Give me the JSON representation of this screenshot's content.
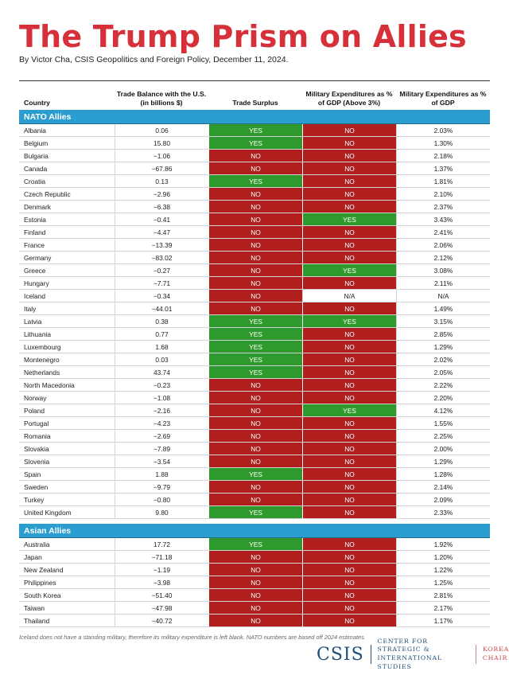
{
  "title": "The Trump Prism on Allies",
  "byline": "By Victor Cha, CSIS Geopolitics and Foreign Policy, December 11, 2024.",
  "headers": {
    "country": "Country",
    "trade_balance": "Trade Balance with the U.S. (in billions $)",
    "trade_surplus": "Trade Surplus",
    "mil_above": "Military Expenditures as % of GDP (Above 3%)",
    "mil_gdp": "Military Expenditures as % of GDP"
  },
  "sections": [
    {
      "label": "NATO Allies",
      "rows": [
        [
          "Albania",
          "0.06",
          "YES",
          "NO",
          "2.03%"
        ],
        [
          "Belgium",
          "15.80",
          "YES",
          "NO",
          "1.30%"
        ],
        [
          "Bulgaria",
          "−1.06",
          "NO",
          "NO",
          "2.18%"
        ],
        [
          "Canada",
          "−67.86",
          "NO",
          "NO",
          "1.37%"
        ],
        [
          "Croatia",
          "0.13",
          "YES",
          "NO",
          "1.81%"
        ],
        [
          "Czech Republic",
          "−2.96",
          "NO",
          "NO",
          "2.10%"
        ],
        [
          "Denmark",
          "−6.38",
          "NO",
          "NO",
          "2.37%"
        ],
        [
          "Estonia",
          "−0.41",
          "NO",
          "YES",
          "3.43%"
        ],
        [
          "Finland",
          "−4.47",
          "NO",
          "NO",
          "2.41%"
        ],
        [
          "France",
          "−13.39",
          "NO",
          "NO",
          "2.06%"
        ],
        [
          "Germany",
          "−83.02",
          "NO",
          "NO",
          "2.12%"
        ],
        [
          "Greece",
          "−0.27",
          "NO",
          "YES",
          "3.08%"
        ],
        [
          "Hungary",
          "−7.71",
          "NO",
          "NO",
          "2.11%"
        ],
        [
          "Iceland",
          "−0.34",
          "NO",
          "N/A",
          "N/A"
        ],
        [
          "Italy",
          "−44.01",
          "NO",
          "NO",
          "1.49%"
        ],
        [
          "Latvia",
          "0.38",
          "YES",
          "YES",
          "3.15%"
        ],
        [
          "Lithuania",
          "0.77",
          "YES",
          "NO",
          "2.85%"
        ],
        [
          "Luxembourg",
          "1.68",
          "YES",
          "NO",
          "1.29%"
        ],
        [
          "Montenegro",
          "0.03",
          "YES",
          "NO",
          "2.02%"
        ],
        [
          "Netherlands",
          "43.74",
          "YES",
          "NO",
          "2.05%"
        ],
        [
          "North Macedonia",
          "−0.23",
          "NO",
          "NO",
          "2.22%"
        ],
        [
          "Norway",
          "−1.08",
          "NO",
          "NO",
          "2.20%"
        ],
        [
          "Poland",
          "−2.16",
          "NO",
          "YES",
          "4.12%"
        ],
        [
          "Portugal",
          "−4.23",
          "NO",
          "NO",
          "1.55%"
        ],
        [
          "Romania",
          "−2.69",
          "NO",
          "NO",
          "2.25%"
        ],
        [
          "Slovakia",
          "−7.89",
          "NO",
          "NO",
          "2.00%"
        ],
        [
          "Slovenia",
          "−3.54",
          "NO",
          "NO",
          "1.29%"
        ],
        [
          "Spain",
          "1.88",
          "YES",
          "NO",
          "1.28%"
        ],
        [
          "Sweden",
          "−9.79",
          "NO",
          "NO",
          "2.14%"
        ],
        [
          "Turkey",
          "−0.80",
          "NO",
          "NO",
          "2.09%"
        ],
        [
          "United Kingdom",
          "9.80",
          "YES",
          "NO",
          "2.33%"
        ]
      ]
    },
    {
      "label": "Asian Allies",
      "rows": [
        [
          "Australia",
          "17.72",
          "YES",
          "NO",
          "1.92%"
        ],
        [
          "Japan",
          "−71.18",
          "NO",
          "NO",
          "1.20%"
        ],
        [
          "New Zealand",
          "−1.19",
          "NO",
          "NO",
          "1.22%"
        ],
        [
          "Philippines",
          "−3.98",
          "NO",
          "NO",
          "1.25%"
        ],
        [
          "South Korea",
          "−51.40",
          "NO",
          "NO",
          "2.81%"
        ],
        [
          "Taiwan",
          "−47.98",
          "NO",
          "NO",
          "2.17%"
        ],
        [
          "Thailand",
          "−40.72",
          "NO",
          "NO",
          "1.17%"
        ]
      ]
    }
  ],
  "footnote": "Iceland does not have a standing military, therefore its military expenditure is left blank. NATO numbers are based off 2024 estimates.",
  "logo": {
    "csis": "CSIS",
    "center_line1": "CENTER FOR STRATEGIC &",
    "center_line2": "INTERNATIONAL STUDIES",
    "korea_line1": "KOREA",
    "korea_line2": "CHAIR"
  },
  "colors": {
    "title": "#d6303a",
    "section_bar": "#2c9dcf",
    "yes": "#2e9a2e",
    "no": "#b01e1e"
  }
}
